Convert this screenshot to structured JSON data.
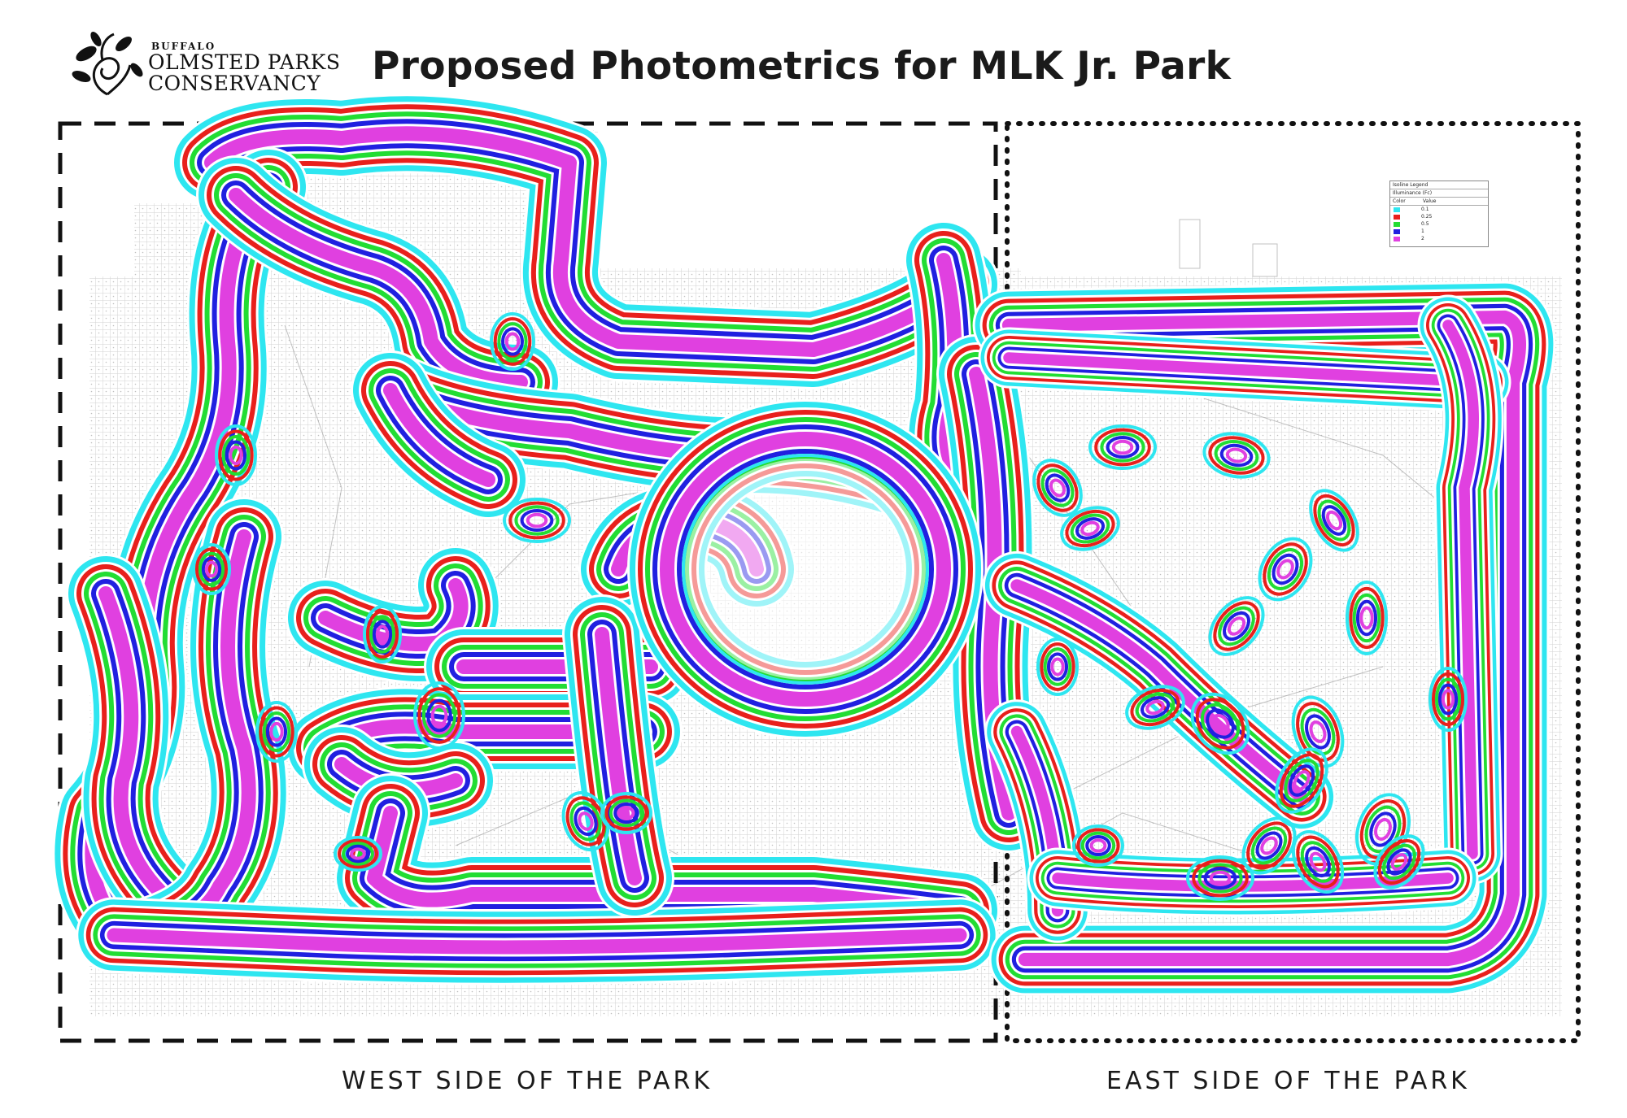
{
  "header": {
    "logo": {
      "line1": "BUFFALO",
      "line2": "OLMSTED PARKS",
      "line3": "CONSERVANCY"
    },
    "title": "Proposed Photometrics for MLK Jr. Park"
  },
  "regions": {
    "west_label": "WEST SIDE OF THE PARK",
    "east_label": "EAST SIDE OF THE PARK"
  },
  "legend": {
    "title": "Isoline Legend",
    "subtitle": "Illuminance (Fc)",
    "col_color": "Color",
    "col_value": "Value",
    "items": [
      {
        "color": "#2ee6f0",
        "value": "0.1"
      },
      {
        "color": "#e8201c",
        "value": "0.25"
      },
      {
        "color": "#22dd33",
        "value": "0.5"
      },
      {
        "color": "#2020e0",
        "value": "1"
      },
      {
        "color": "#e040e0",
        "value": "2"
      }
    ]
  },
  "colors": {
    "isoline_0_1": "#2ee6f0",
    "isoline_0_25": "#e8201c",
    "isoline_0_5": "#22dd33",
    "isoline_1": "#2020e0",
    "isoline_2": "#e040e0",
    "grid": "#c8c8c8",
    "boundary": "#111111"
  }
}
